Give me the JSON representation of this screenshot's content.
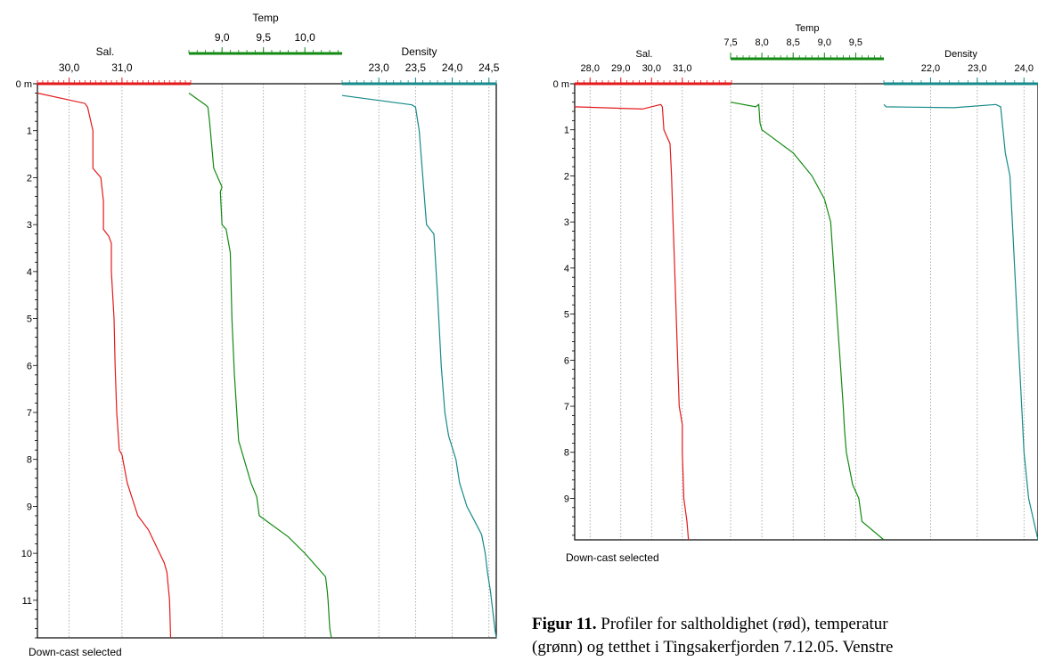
{
  "caption": {
    "label": "Figur 11.",
    "line1": " Profiler for saltholdighet (rød), temperatur",
    "line2": "(grønn) og tetthet i Tingsakerfjorden 7.12.05. Venstre"
  },
  "colors": {
    "sal": "#e31a1c",
    "temp": "#138a13",
    "density": "#168a8a"
  },
  "chart_data": [
    {
      "type": "line",
      "depth_unit_label": "0 m",
      "footer": "Down-cast selected",
      "ylim": [
        0,
        11.8
      ],
      "depth_ticks": [
        1,
        2,
        3,
        4,
        5,
        6,
        7,
        8,
        9,
        10,
        11
      ],
      "axes": {
        "sal": {
          "title": "Sal.",
          "min": 29.4,
          "max": 32.3,
          "ticks": [
            "30,0",
            "31,0"
          ],
          "tick_values": [
            30.0,
            31.0
          ]
        },
        "temp": {
          "title": "Temp",
          "min": 8.6,
          "max": 10.45,
          "ticks": [
            "9,0",
            "9,5",
            "10,0"
          ],
          "tick_values": [
            9.0,
            9.5,
            10.0
          ]
        },
        "density": {
          "title": "Density",
          "min": 22.5,
          "max": 24.6,
          "ticks": [
            "23,0",
            "23,5",
            "24,0",
            "24,5"
          ],
          "tick_values": [
            23.0,
            23.5,
            24.0,
            24.5
          ]
        }
      },
      "series": [
        {
          "name": "Sal.",
          "depth": [
            0.2,
            0.42,
            0.5,
            1.0,
            1.8,
            2.0,
            2.5,
            3.1,
            3.25,
            3.4,
            4.0,
            5.0,
            6.0,
            7.0,
            7.8,
            7.9,
            8.5,
            9.2,
            9.5,
            10.2,
            10.4,
            11.0,
            11.8
          ],
          "values": [
            29.4,
            30.3,
            30.35,
            30.45,
            30.45,
            30.6,
            30.65,
            30.65,
            30.75,
            30.8,
            30.8,
            30.85,
            30.87,
            30.9,
            30.95,
            31.0,
            31.1,
            31.3,
            31.5,
            31.8,
            31.85,
            31.9,
            31.92
          ]
        },
        {
          "name": "Temp",
          "depth": [
            0.2,
            0.45,
            0.5,
            0.8,
            1.8,
            2.2,
            2.3,
            3.0,
            3.1,
            3.6,
            5.0,
            6.2,
            7.6,
            8.5,
            8.8,
            9.2,
            9.65,
            10.0,
            10.3,
            10.5,
            10.8,
            11.0,
            11.6,
            11.8
          ],
          "values": [
            8.6,
            8.8,
            8.83,
            8.85,
            8.9,
            9.0,
            8.98,
            9.0,
            9.05,
            9.1,
            9.12,
            9.15,
            9.2,
            9.35,
            9.42,
            9.45,
            9.8,
            10.0,
            10.15,
            10.25,
            10.27,
            10.28,
            10.3,
            10.32
          ]
        },
        {
          "name": "Density",
          "depth": [
            0.25,
            0.45,
            0.5,
            1.0,
            2.0,
            3.0,
            3.2,
            4.5,
            6.0,
            7.0,
            7.5,
            8.0,
            8.5,
            9.0,
            9.3,
            9.6,
            10.0,
            10.4,
            10.8,
            11.2,
            11.6,
            11.8
          ],
          "values": [
            22.5,
            23.45,
            23.5,
            23.55,
            23.6,
            23.65,
            23.75,
            23.8,
            23.85,
            23.9,
            23.95,
            24.05,
            24.1,
            24.2,
            24.3,
            24.4,
            24.45,
            24.48,
            24.52,
            24.55,
            24.58,
            24.6
          ]
        }
      ]
    },
    {
      "type": "line",
      "depth_unit_label": "0 m",
      "footer": "Down-cast selected",
      "ylim": [
        0,
        9.9
      ],
      "depth_ticks": [
        1,
        2,
        3,
        4,
        5,
        6,
        7,
        8,
        9
      ],
      "axes": {
        "sal": {
          "title": "Sal.",
          "min": 27.5,
          "max": 32.6,
          "ticks": [
            "28,0",
            "29,0",
            "30,0",
            "31,0"
          ],
          "tick_values": [
            28.0,
            29.0,
            30.0,
            31.0
          ]
        },
        "temp": {
          "title": "Temp",
          "min": 7.5,
          "max": 9.95,
          "ticks": [
            "7,5",
            "8,0",
            "8,5",
            "9,0",
            "9,5"
          ],
          "tick_values": [
            7.5,
            8.0,
            8.5,
            9.0,
            9.5
          ]
        },
        "density": {
          "title": "Density",
          "min": 21.0,
          "max": 24.3,
          "ticks": [
            "22,0",
            "23,0",
            "24,0"
          ],
          "tick_values": [
            22.0,
            23.0,
            24.0
          ]
        }
      },
      "series": [
        {
          "name": "Sal.",
          "depth": [
            0.5,
            0.55,
            0.45,
            0.5,
            1.0,
            1.3,
            2.0,
            3.0,
            4.0,
            5.0,
            6.0,
            7.0,
            7.4,
            8.0,
            9.0,
            9.5,
            9.9
          ],
          "values": [
            27.5,
            29.7,
            30.3,
            30.35,
            30.4,
            30.6,
            30.65,
            30.7,
            30.75,
            30.8,
            30.85,
            30.9,
            31.0,
            31.0,
            31.05,
            31.15,
            31.2
          ]
        },
        {
          "name": "Temp",
          "depth": [
            0.4,
            0.5,
            0.45,
            0.85,
            1.0,
            1.5,
            2.0,
            2.5,
            3.0,
            4.0,
            5.0,
            6.0,
            7.0,
            7.5,
            8.0,
            8.7,
            9.0,
            9.5,
            9.9
          ],
          "values": [
            7.5,
            7.9,
            7.95,
            7.97,
            8.0,
            8.5,
            8.8,
            9.0,
            9.1,
            9.15,
            9.2,
            9.25,
            9.3,
            9.32,
            9.35,
            9.45,
            9.55,
            9.6,
            9.95
          ]
        },
        {
          "name": "Density",
          "depth": [
            0.45,
            0.5,
            0.52,
            0.45,
            0.5,
            1.0,
            1.5,
            2.0,
            3.0,
            4.0,
            5.0,
            6.0,
            7.0,
            8.0,
            9.0,
            9.9
          ],
          "values": [
            21.0,
            21.05,
            22.5,
            23.4,
            23.5,
            23.55,
            23.6,
            23.7,
            23.75,
            23.8,
            23.85,
            23.9,
            23.95,
            24.0,
            24.1,
            24.3
          ]
        }
      ]
    }
  ]
}
